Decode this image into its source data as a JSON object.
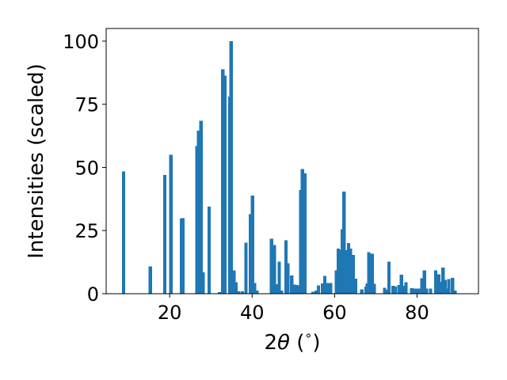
{
  "chart_data": {
    "type": "bar",
    "title": "",
    "xlabel_pre": "2",
    "xlabel_theta": "θ",
    "xlabel_post": " (",
    "xlabel_unit": "∘",
    "xlabel_close": ")",
    "ylabel": "Intensities (scaled)",
    "xlim": [
      4.6,
      94.9
    ],
    "ylim": [
      0,
      105
    ],
    "xticks": [
      20,
      40,
      60,
      80
    ],
    "yticks": [
      0,
      25,
      50,
      75,
      100
    ],
    "grid": false,
    "bar_color": "#1f77b4",
    "bar_width": 0.8,
    "x": [
      8.8,
      15.3,
      18.8,
      20.3,
      22.9,
      23.2,
      26.6,
      27.0,
      27.6,
      28.1,
      29.6,
      32.1,
      32.9,
      33.4,
      34.6,
      34.9,
      35.6,
      36.1,
      36.7,
      37.6,
      38.5,
      39.6,
      40.1,
      40.6,
      41.2,
      44.7,
      45.4,
      46.1,
      46.6,
      47.1,
      48.2,
      48.7,
      49.6,
      50.3,
      50.8,
      51.4,
      51.8,
      52.2,
      52.8,
      54.8,
      55.5,
      56.1,
      57.1,
      57.6,
      58.3,
      59.1,
      60.4,
      60.9,
      61.4,
      61.9,
      62.3,
      62.7,
      63.4,
      63.9,
      64.5,
      65.1,
      66.6,
      67.6,
      67.9,
      68.3,
      69.1,
      69.6,
      72.1,
      72.7,
      73.2,
      74.2,
      74.7,
      75.6,
      76.2,
      76.8,
      77.3,
      78.7,
      79.2,
      79.9,
      80.6,
      81.2,
      81.8,
      82.3,
      83.3,
      84.5,
      84.9,
      85.3,
      85.8,
      86.3,
      86.8,
      87.3,
      87.7,
      88.6,
      89.2
    ],
    "values": [
      48.5,
      10.8,
      47.0,
      55.0,
      29.8,
      30.0,
      58.5,
      64.5,
      68.5,
      8.5,
      34.5,
      0.6,
      88.8,
      86.4,
      78.0,
      100.0,
      9.2,
      4.5,
      1.0,
      1.0,
      20.2,
      31.5,
      38.9,
      4.3,
      1.2,
      21.8,
      19.2,
      3.8,
      12.7,
      1.2,
      21.2,
      12.0,
      7.2,
      3.6,
      3.5,
      3.3,
      41.0,
      49.3,
      47.7,
      0.8,
      1.2,
      3.3,
      4.1,
      7.0,
      4.3,
      4.3,
      9.2,
      17.8,
      17.4,
      25.6,
      40.5,
      17.3,
      20.0,
      17.8,
      15.3,
      6.0,
      1.8,
      2.8,
      4.1,
      16.5,
      15.8,
      3.9,
      2.3,
      1.5,
      12.7,
      3.1,
      2.9,
      3.4,
      7.6,
      3.2,
      4.6,
      2.2,
      2.0,
      2.1,
      2.0,
      6.1,
      9.3,
      2.0,
      2.0,
      9.3,
      3.0,
      7.7,
      4.7,
      10.3,
      5.5,
      2.0,
      5.8,
      6.2,
      1.3
    ]
  }
}
